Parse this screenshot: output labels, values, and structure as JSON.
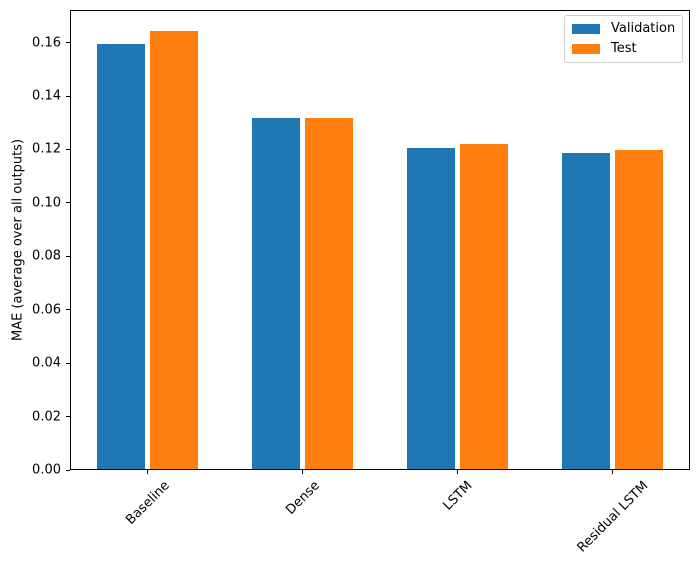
{
  "chart_data": {
    "type": "bar",
    "title": "",
    "categories": [
      "Baseline",
      "Dense",
      "LSTM",
      "Residual LSTM"
    ],
    "series": [
      {
        "name": "Validation",
        "color": "#1f77b4",
        "values": [
          0.159,
          0.1313,
          0.1202,
          0.1184
        ]
      },
      {
        "name": "Test",
        "color": "#ff7f0e",
        "values": [
          0.164,
          0.1314,
          0.1217,
          0.1195
        ]
      }
    ],
    "xlabel": "",
    "ylabel": "MAE (average over all outputs)",
    "ylim": [
      0,
      0.1722
    ],
    "ytick_values": [
      0.0,
      0.02,
      0.04,
      0.06,
      0.08,
      0.1,
      0.12,
      0.14,
      0.16
    ],
    "ytick_labels": [
      "0.00",
      "0.02",
      "0.04",
      "0.06",
      "0.08",
      "0.10",
      "0.12",
      "0.14",
      "0.16"
    ],
    "xtick_rotation_deg": 45,
    "grid": false,
    "legend": {
      "location": "upper right",
      "entries": [
        "Validation",
        "Test"
      ]
    },
    "colors": {
      "spine": "#000000",
      "legend_border": "#cccccc",
      "background": "#ffffff"
    }
  }
}
